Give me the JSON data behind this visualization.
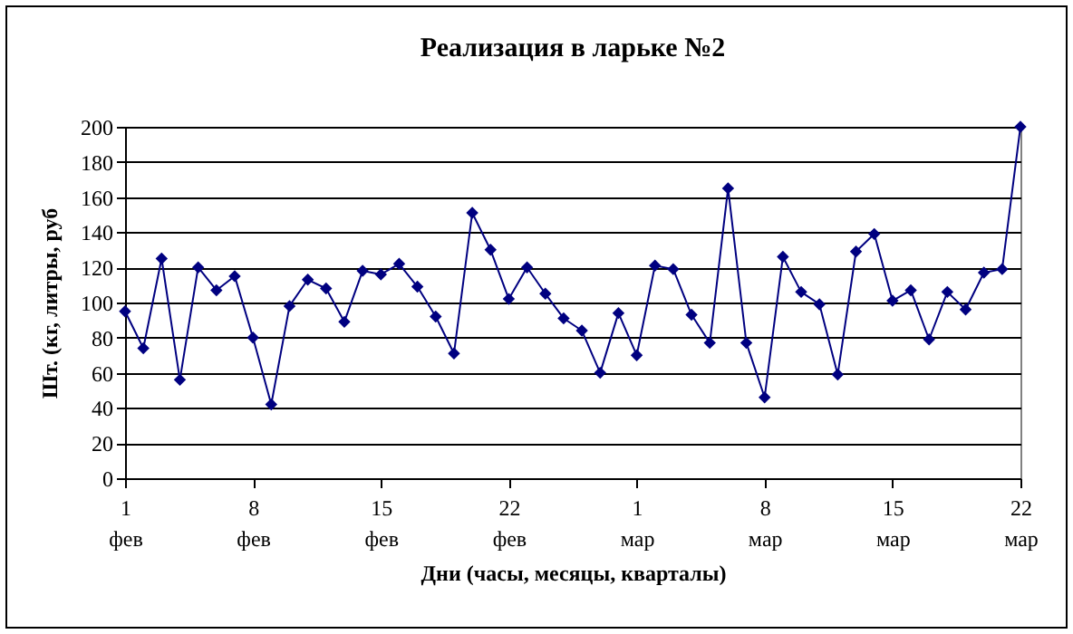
{
  "chart_data": {
    "type": "line",
    "title": "Реализация в ларьке №2",
    "xlabel": "Дни (часы, месяцы, кварталы)",
    "ylabel": "Шт. (кг, литры, руб",
    "x": [
      "--02-01",
      "--02-02",
      "--02-03",
      "--02-04",
      "--02-05",
      "--02-06",
      "--02-07",
      "--02-08",
      "--02-09",
      "--02-10",
      "--02-11",
      "--02-12",
      "--02-13",
      "--02-14",
      "--02-15",
      "--02-16",
      "--02-17",
      "--02-18",
      "--02-19",
      "--02-20",
      "--02-21",
      "--02-22",
      "--02-23",
      "--02-24",
      "--02-25",
      "--02-26",
      "--02-27",
      "--02-28",
      "--03-01",
      "--03-02",
      "--03-03",
      "--03-04",
      "--03-05",
      "--03-06",
      "--03-07",
      "--03-08",
      "--03-09",
      "--03-10",
      "--03-11",
      "--03-12",
      "--03-13",
      "--03-14",
      "--03-15",
      "--03-16",
      "--03-17",
      "--03-18",
      "--03-19",
      "--03-20",
      "--03-21",
      "--03-22"
    ],
    "series": [
      {
        "color": "#000080",
        "values": [
          95,
          74,
          125,
          56,
          120,
          107,
          115,
          80,
          42,
          98,
          113,
          108,
          89,
          118,
          116,
          122,
          109,
          92,
          71,
          151,
          130,
          102,
          120,
          105,
          91,
          84,
          60,
          94,
          70,
          121,
          119,
          93,
          77,
          165,
          77,
          46,
          126,
          106,
          99,
          59,
          129,
          139,
          101,
          107,
          79,
          106,
          96,
          117,
          119,
          200
        ]
      }
    ],
    "xlim": [
      "--02-01",
      "--03-22"
    ],
    "xticks": [
      {
        "value": "--02-01",
        "label": "1\nфев"
      },
      {
        "value": "--02-08",
        "label": "8\nфев"
      },
      {
        "value": "--02-15",
        "label": "15\nфев"
      },
      {
        "value": "--02-22",
        "label": "22\nфев"
      },
      {
        "value": "--03-01",
        "label": "1\nмар"
      },
      {
        "value": "--03-08",
        "label": "8\nмар"
      },
      {
        "value": "--03-15",
        "label": "15\nмар"
      },
      {
        "value": "--03-22",
        "label": "22\nмар"
      }
    ],
    "ylim": [
      0,
      200
    ],
    "yticks": [
      0,
      20,
      40,
      60,
      80,
      100,
      120,
      140,
      160,
      180,
      200
    ],
    "grid": "y",
    "legend": false,
    "marker": "diamond",
    "line_style": "solid"
  }
}
